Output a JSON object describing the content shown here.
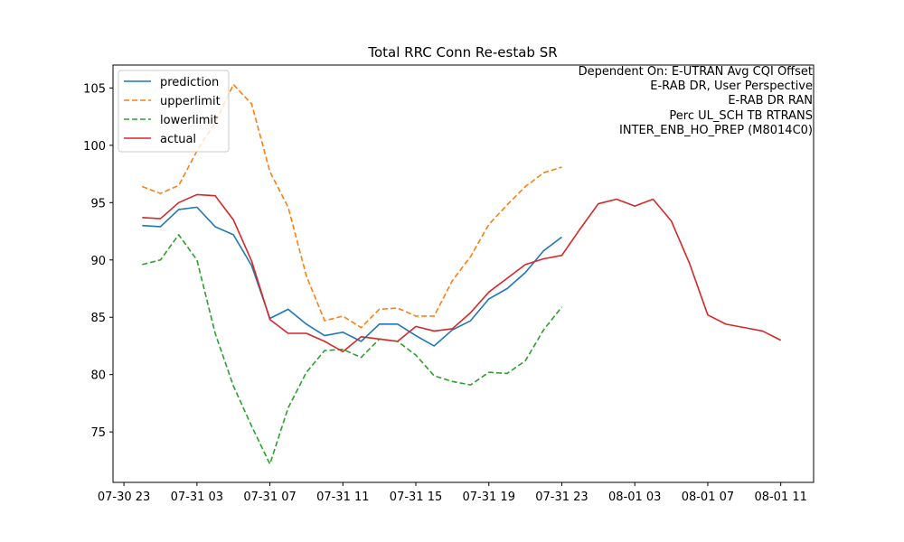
{
  "chart_data": {
    "type": "line",
    "title": "Total RRC Conn Re-estab SR",
    "xlabel": "",
    "ylabel": "",
    "x_start": "2019-07-30 23:00",
    "x_step_hours": 1,
    "xlim": [
      -0.6,
      37.8
    ],
    "ylim": [
      70.6,
      107.0
    ],
    "xticks": [
      {
        "hour": 0,
        "label": "07-30 23"
      },
      {
        "hour": 4,
        "label": "07-31 03"
      },
      {
        "hour": 8,
        "label": "07-31 07"
      },
      {
        "hour": 12,
        "label": "07-31 11"
      },
      {
        "hour": 16,
        "label": "07-31 15"
      },
      {
        "hour": 20,
        "label": "07-31 19"
      },
      {
        "hour": 24,
        "label": "07-31 23"
      },
      {
        "hour": 28,
        "label": "08-01 03"
      },
      {
        "hour": 32,
        "label": "08-01 07"
      },
      {
        "hour": 36,
        "label": "08-01 11"
      }
    ],
    "yticks": [
      75,
      80,
      85,
      90,
      95,
      100,
      105
    ],
    "legend_position": "top-left",
    "grid": false,
    "series": [
      {
        "name": "prediction",
        "color": "#1f77b4",
        "dash": "solid",
        "start_hour": 1,
        "values": [
          93.0,
          92.9,
          94.4,
          94.6,
          92.9,
          92.2,
          89.5,
          84.9,
          85.7,
          84.4,
          83.4,
          83.7,
          82.9,
          84.4,
          84.4,
          83.4,
          82.5,
          83.9,
          84.7,
          86.6,
          87.5,
          88.9,
          90.8,
          92.0
        ]
      },
      {
        "name": "upperlimit",
        "color": "#ff7f0e",
        "dash": "dashed",
        "start_hour": 1,
        "values": [
          96.4,
          95.8,
          96.5,
          99.5,
          102.0,
          105.3,
          103.6,
          97.7,
          94.6,
          88.6,
          84.7,
          85.1,
          84.1,
          85.7,
          85.8,
          85.1,
          85.1,
          88.2,
          90.3,
          93.1,
          94.8,
          96.4,
          97.6,
          98.1
        ]
      },
      {
        "name": "lowerlimit",
        "color": "#2ca02c",
        "dash": "dashed",
        "start_hour": 1,
        "values": [
          89.6,
          90.0,
          92.2,
          90.0,
          83.6,
          79.0,
          75.5,
          72.2,
          77.1,
          80.2,
          82.1,
          82.2,
          81.5,
          83.1,
          82.9,
          81.7,
          79.9,
          79.4,
          79.1,
          80.2,
          80.1,
          81.2,
          83.9,
          85.9
        ]
      },
      {
        "name": "actual",
        "color": "#d62728",
        "dash": "solid",
        "start_hour": 1,
        "values": [
          93.7,
          93.6,
          95.0,
          95.7,
          95.6,
          93.5,
          89.9,
          84.8,
          83.6,
          83.6,
          82.9,
          82.0,
          83.3,
          83.1,
          82.9,
          84.2,
          83.8,
          84.0,
          85.4,
          87.2,
          88.4,
          89.6,
          90.1,
          90.4,
          92.7,
          94.9,
          95.3,
          94.7,
          95.3,
          93.4,
          89.7,
          85.2,
          84.4,
          84.1,
          83.8,
          83.0
        ]
      }
    ],
    "annotation_lines": [
      "Dependent On: E-UTRAN Avg CQI Offset",
      "E-RAB DR, User Perspective",
      "E-RAB DR RAN",
      "Perc UL_SCH TB RTRANS",
      "INTER_ENB_HO_PREP (M8014C0)"
    ]
  }
}
